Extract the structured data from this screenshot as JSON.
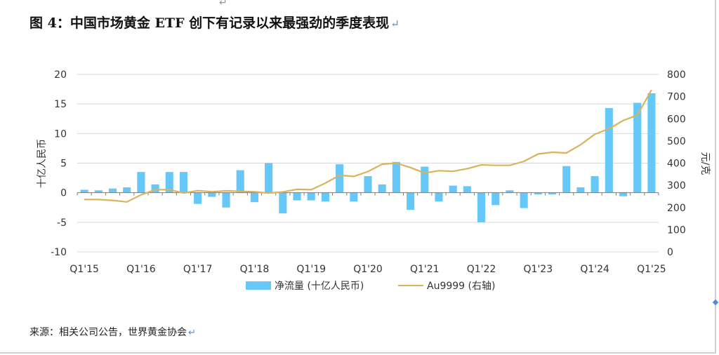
{
  "title": "图 4：中国市场黄金 ETF 创下有记录以来最强劲的季度表现",
  "source": "来源：相关公司公告，世界黄金协会",
  "return_mark": "↵",
  "colors": {
    "bar": "#66c8f8",
    "line": "#d9b35e",
    "grid": "#d9d9d9",
    "axis": "#7f7f7f"
  },
  "chart_data": {
    "type": "bar+line",
    "ylabel_left": "十亿人民币",
    "ylabel_right": "元/克",
    "ylim_left": [
      -10,
      20
    ],
    "ylim_right": [
      0,
      800
    ],
    "yticks_left": [
      "20",
      "15",
      "10",
      "5",
      "0",
      "-5",
      "-10"
    ],
    "yticks_right": [
      "800",
      "700",
      "600",
      "500",
      "400",
      "300",
      "200",
      "100",
      "0"
    ],
    "xtick_labels": [
      "Q1'15",
      "Q1'16",
      "Q1'17",
      "Q1'18",
      "Q1'19",
      "Q1'20",
      "Q1'21",
      "Q1'22",
      "Q1'23",
      "Q1'24",
      "Q1'25"
    ],
    "categories": [
      "Q1'15",
      "Q2'15",
      "Q3'15",
      "Q4'15",
      "Q1'16",
      "Q2'16",
      "Q3'16",
      "Q4'16",
      "Q1'17",
      "Q2'17",
      "Q3'17",
      "Q4'17",
      "Q1'18",
      "Q2'18",
      "Q3'18",
      "Q4'18",
      "Q1'19",
      "Q2'19",
      "Q3'19",
      "Q4'19",
      "Q1'20",
      "Q2'20",
      "Q3'20",
      "Q4'20",
      "Q1'21",
      "Q2'21",
      "Q3'21",
      "Q4'21",
      "Q1'22",
      "Q2'22",
      "Q3'22",
      "Q4'22",
      "Q1'23",
      "Q2'23",
      "Q3'23",
      "Q4'23",
      "Q1'24",
      "Q2'24",
      "Q3'24",
      "Q4'24",
      "Q1'25"
    ],
    "series": [
      {
        "name": "净流量 (十亿人民币)",
        "type": "bar",
        "axis": "left",
        "values": [
          0.5,
          0.4,
          0.7,
          0.9,
          3.5,
          1.4,
          3.5,
          3.5,
          -1.9,
          -0.7,
          -2.5,
          3.8,
          -1.6,
          5.0,
          -3.5,
          -1.3,
          -1.3,
          -1.5,
          4.8,
          -1.5,
          2.8,
          1.4,
          5.2,
          -2.9,
          4.4,
          -1.5,
          1.2,
          1.1,
          -5.0,
          -2.1,
          0.4,
          -2.6,
          -0.3,
          -0.3,
          4.5,
          0.9,
          2.8,
          14.3,
          -0.6,
          15.2,
          16.8
        ]
      },
      {
        "name": "Au9999 (右轴)",
        "type": "line",
        "axis": "right",
        "values": [
          236,
          236,
          232,
          225,
          257,
          280,
          280,
          265,
          276,
          271,
          275,
          273,
          271,
          265,
          270,
          282,
          280,
          310,
          345,
          340,
          362,
          395,
          400,
          380,
          355,
          366,
          363,
          375,
          392,
          390,
          390,
          408,
          441,
          449,
          446,
          483,
          530,
          555,
          592,
          616,
          730
        ]
      }
    ]
  }
}
